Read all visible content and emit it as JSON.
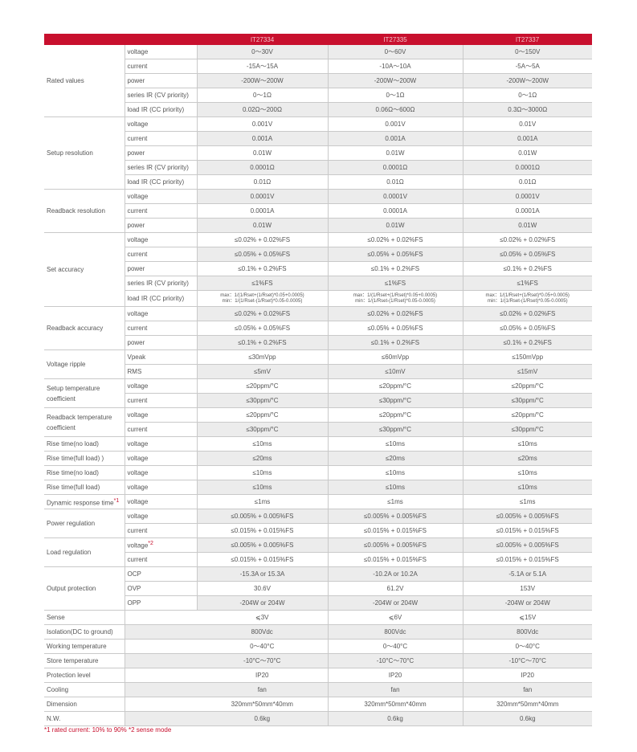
{
  "colors": {
    "header": "#c8102e",
    "row_shade": "#ececec",
    "note": "#c8102e"
  },
  "models": [
    "IT27334",
    "IT27335",
    "IT27337"
  ],
  "groups": [
    {
      "label": "Rated values",
      "rows": [
        {
          "sub": "voltage",
          "values": [
            "0～30V",
            "0～60V",
            "0～150V"
          ]
        },
        {
          "sub": "current",
          "values": [
            "-15A～15A",
            "-10A～10A",
            "-5A～5A"
          ]
        },
        {
          "sub": "power",
          "values": [
            "-200W～200W",
            "-200W～200W",
            "-200W～200W"
          ]
        },
        {
          "sub": "series IR (CV priority)",
          "values": [
            "0～1Ω",
            "0～1Ω",
            "0～1Ω"
          ]
        },
        {
          "sub": "load IR (CC priority)",
          "values": [
            "0.02Ω～200Ω",
            "0.06Ω～600Ω",
            "0.3Ω～3000Ω"
          ]
        }
      ]
    },
    {
      "label": "Setup resolution",
      "rows": [
        {
          "sub": "voltage",
          "values": [
            "0.001V",
            "0.001V",
            "0.01V"
          ]
        },
        {
          "sub": "current",
          "values": [
            "0.001A",
            "0.001A",
            "0.001A"
          ]
        },
        {
          "sub": "power",
          "values": [
            "0.01W",
            "0.01W",
            "0.01W"
          ]
        },
        {
          "sub": "series IR (CV priority)",
          "values": [
            "0.0001Ω",
            "0.0001Ω",
            "0.0001Ω"
          ]
        },
        {
          "sub": "load IR (CC priority)",
          "values": [
            "0.01Ω",
            "0.01Ω",
            "0.01Ω"
          ]
        }
      ]
    },
    {
      "label": "Readback resolution",
      "rows": [
        {
          "sub": "voltage",
          "values": [
            "0.0001V",
            "0.0001V",
            "0.0001V"
          ]
        },
        {
          "sub": "current",
          "values": [
            "0.0001A",
            "0.0001A",
            "0.0001A"
          ]
        },
        {
          "sub": "power",
          "values": [
            "0.01W",
            "0.01W",
            "0.01W"
          ]
        }
      ]
    },
    {
      "label": "Set accuracy",
      "rows": [
        {
          "sub": "voltage",
          "values": [
            "≤0.02% + 0.02%FS",
            "≤0.02% + 0.02%FS",
            "≤0.02% + 0.02%FS"
          ]
        },
        {
          "sub": "current",
          "values": [
            "≤0.05% + 0.05%FS",
            "≤0.05% + 0.05%FS",
            "≤0.05% + 0.05%FS"
          ]
        },
        {
          "sub": "power",
          "values": [
            "≤0.1% + 0.2%FS",
            "≤0.1% + 0.2%FS",
            "≤0.1% + 0.2%FS"
          ]
        },
        {
          "sub": "series IR (CV priority)",
          "values": [
            "≤1%FS",
            "≤1%FS",
            "≤1%FS"
          ]
        },
        {
          "sub": "load IR (CC priority)",
          "formula": true,
          "values": [
            [
              "max：1/(1/Rset+(1/Rset)*0.05+0.0005)",
              "min：1/(1/Rset-(1/Rset)*0.05-0.0005)"
            ],
            [
              "max：1/(1/Rset+(1/Rset)*0.05+0.0005)",
              "min：1/(1/Rset-(1/Rset)*0.05-0.0005)"
            ],
            [
              "max：1/(1/Rset+(1/Rset)*0.05+0.0005)",
              "min：1/(1/Rset-(1/Rset)*0.05-0.0005)"
            ]
          ]
        }
      ]
    },
    {
      "label": "Readback accuracy",
      "rows": [
        {
          "sub": "voltage",
          "values": [
            "≤0.02% + 0.02%FS",
            "≤0.02% + 0.02%FS",
            "≤0.02% + 0.02%FS"
          ]
        },
        {
          "sub": "current",
          "values": [
            "≤0.05% + 0.05%FS",
            "≤0.05% + 0.05%FS",
            "≤0.05% + 0.05%FS"
          ]
        },
        {
          "sub": "power",
          "values": [
            "≤0.1% + 0.2%FS",
            "≤0.1% + 0.2%FS",
            "≤0.1% + 0.2%FS"
          ]
        }
      ]
    },
    {
      "label": "Voltage ripple",
      "rows": [
        {
          "sub": "Vpeak",
          "values": [
            "≤30mVpp",
            "≤60mVpp",
            "≤150mVpp"
          ]
        },
        {
          "sub": "RMS",
          "values": [
            "≤5mV",
            "≤10mV",
            "≤15mV"
          ]
        }
      ]
    },
    {
      "label": "Setup temperature coefficient",
      "rows": [
        {
          "sub": "voltage",
          "values": [
            "≤20ppm/°C",
            "≤20ppm/°C",
            "≤20ppm/°C"
          ]
        },
        {
          "sub": "current",
          "values": [
            "≤30ppm/°C",
            "≤30ppm/°C",
            "≤30ppm/°C"
          ]
        }
      ]
    },
    {
      "label": "Readback temperature coefficient",
      "rows": [
        {
          "sub": "voltage",
          "values": [
            "≤20ppm/°C",
            "≤20ppm/°C",
            "≤20ppm/°C"
          ]
        },
        {
          "sub": "current",
          "values": [
            "≤30ppm/°C",
            "≤30ppm/°C",
            "≤30ppm/°C"
          ]
        }
      ]
    },
    {
      "label": "Rise time(no load)",
      "rows": [
        {
          "sub": "voltage",
          "values": [
            "≤10ms",
            "≤10ms",
            "≤10ms"
          ]
        }
      ]
    },
    {
      "label": "Rise time(full load) )",
      "rows": [
        {
          "sub": "voltage",
          "values": [
            "≤20ms",
            "≤20ms",
            "≤20ms"
          ]
        }
      ]
    },
    {
      "label": "Rise time(no load)",
      "rows": [
        {
          "sub": "voltage",
          "values": [
            "≤10ms",
            "≤10ms",
            "≤10ms"
          ]
        }
      ]
    },
    {
      "label": "Rise time(full load)",
      "rows": [
        {
          "sub": "voltage",
          "values": [
            "≤10ms",
            "≤10ms",
            "≤10ms"
          ]
        }
      ]
    },
    {
      "label": "Dynamic response time",
      "label_note": "*1",
      "rows": [
        {
          "sub": "voltage",
          "values": [
            "≤1ms",
            "≤1ms",
            "≤1ms"
          ]
        }
      ]
    },
    {
      "label": "Power regulation",
      "rows": [
        {
          "sub": "voltage",
          "values": [
            "≤0.005% + 0.005%FS",
            "≤0.005% + 0.005%FS",
            "≤0.005% + 0.005%FS"
          ]
        },
        {
          "sub": "current",
          "values": [
            "≤0.015% + 0.015%FS",
            "≤0.015% + 0.015%FS",
            "≤0.015% + 0.015%FS"
          ]
        }
      ]
    },
    {
      "label": "Load regulation",
      "rows": [
        {
          "sub": "voltage",
          "sub_note": "*2",
          "values": [
            "≤0.005% + 0.005%FS",
            "≤0.005% + 0.005%FS",
            "≤0.005% + 0.005%FS"
          ]
        },
        {
          "sub": "current",
          "values": [
            "≤0.015% + 0.015%FS",
            "≤0.015% + 0.015%FS",
            "≤0.015% + 0.015%FS"
          ]
        }
      ]
    },
    {
      "label": "Output protection",
      "rows": [
        {
          "sub": "OCP",
          "values": [
            "-15.3A or 15.3A",
            "-10.2A or 10.2A",
            "-5.1A or 5.1A"
          ]
        },
        {
          "sub": "OVP",
          "values": [
            "30.6V",
            "61.2V",
            "153V"
          ]
        },
        {
          "sub": "OPP",
          "values": [
            "-204W or 204W",
            "-204W or 204W",
            "-204W or 204W"
          ]
        }
      ]
    }
  ],
  "general": [
    {
      "label": "Sense",
      "values": [
        "⩽3V",
        "⩽6V",
        "⩽15V"
      ]
    },
    {
      "label": "Isolation(DC to ground)",
      "values": [
        "800Vdc",
        "800Vdc",
        "800Vdc"
      ]
    },
    {
      "label": "Working temperature",
      "values": [
        "0～40°C",
        "0～40°C",
        "0～40°C"
      ]
    },
    {
      "label": "Store temperature",
      "values": [
        "-10°C～70°C",
        "-10°C～70°C",
        "-10°C～70°C"
      ]
    },
    {
      "label": "Protection level",
      "values": [
        "IP20",
        "IP20",
        "IP20"
      ]
    },
    {
      "label": "Cooling",
      "values": [
        "fan",
        "fan",
        "fan"
      ]
    },
    {
      "label": "Dimension",
      "values": [
        "320mm*50mm*40mm",
        "320mm*50mm*40mm",
        "320mm*50mm*40mm"
      ]
    },
    {
      "label": "N.W.",
      "values": [
        "0.6kg",
        "0.6kg",
        "0.6kg"
      ]
    }
  ],
  "footnote": "*1 rated current: 10% to 90%   *2 sense mode"
}
